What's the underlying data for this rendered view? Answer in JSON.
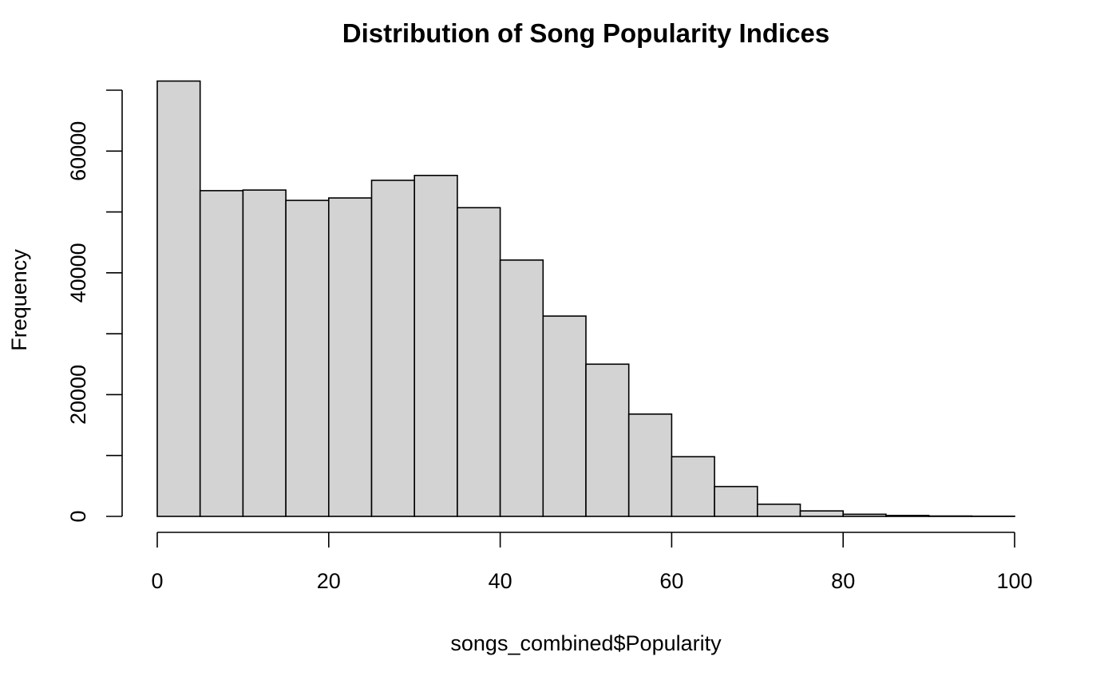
{
  "chart_data": {
    "type": "bar",
    "subtype": "histogram",
    "title": "Distribution of Song Popularity Indices",
    "xlabel": "songs_combined$Popularity",
    "ylabel": "Frequency",
    "bin_edges": [
      0,
      5,
      10,
      15,
      20,
      25,
      30,
      35,
      40,
      45,
      50,
      55,
      60,
      65,
      70,
      75,
      80,
      85,
      90,
      95,
      100
    ],
    "values": [
      71500,
      53500,
      53600,
      51900,
      52300,
      55200,
      56000,
      50700,
      42100,
      32900,
      25000,
      16800,
      9800,
      4900,
      2000,
      900,
      350,
      150,
      60,
      30
    ],
    "xlim": [
      0,
      100
    ],
    "ylim": [
      0,
      70000
    ],
    "x_ticks": [
      0,
      20,
      40,
      60,
      80,
      100
    ],
    "x_tick_labels": [
      "0",
      "20",
      "40",
      "60",
      "80",
      "100"
    ],
    "y_ticks": [
      0,
      10000,
      20000,
      30000,
      40000,
      50000,
      60000,
      70000
    ],
    "y_tick_labels": [
      "0",
      "",
      "20000",
      "",
      "40000",
      "",
      "60000",
      ""
    ],
    "bar_fill": "#d3d3d3",
    "bar_stroke": "#000000",
    "grid": false,
    "legend": "none"
  }
}
